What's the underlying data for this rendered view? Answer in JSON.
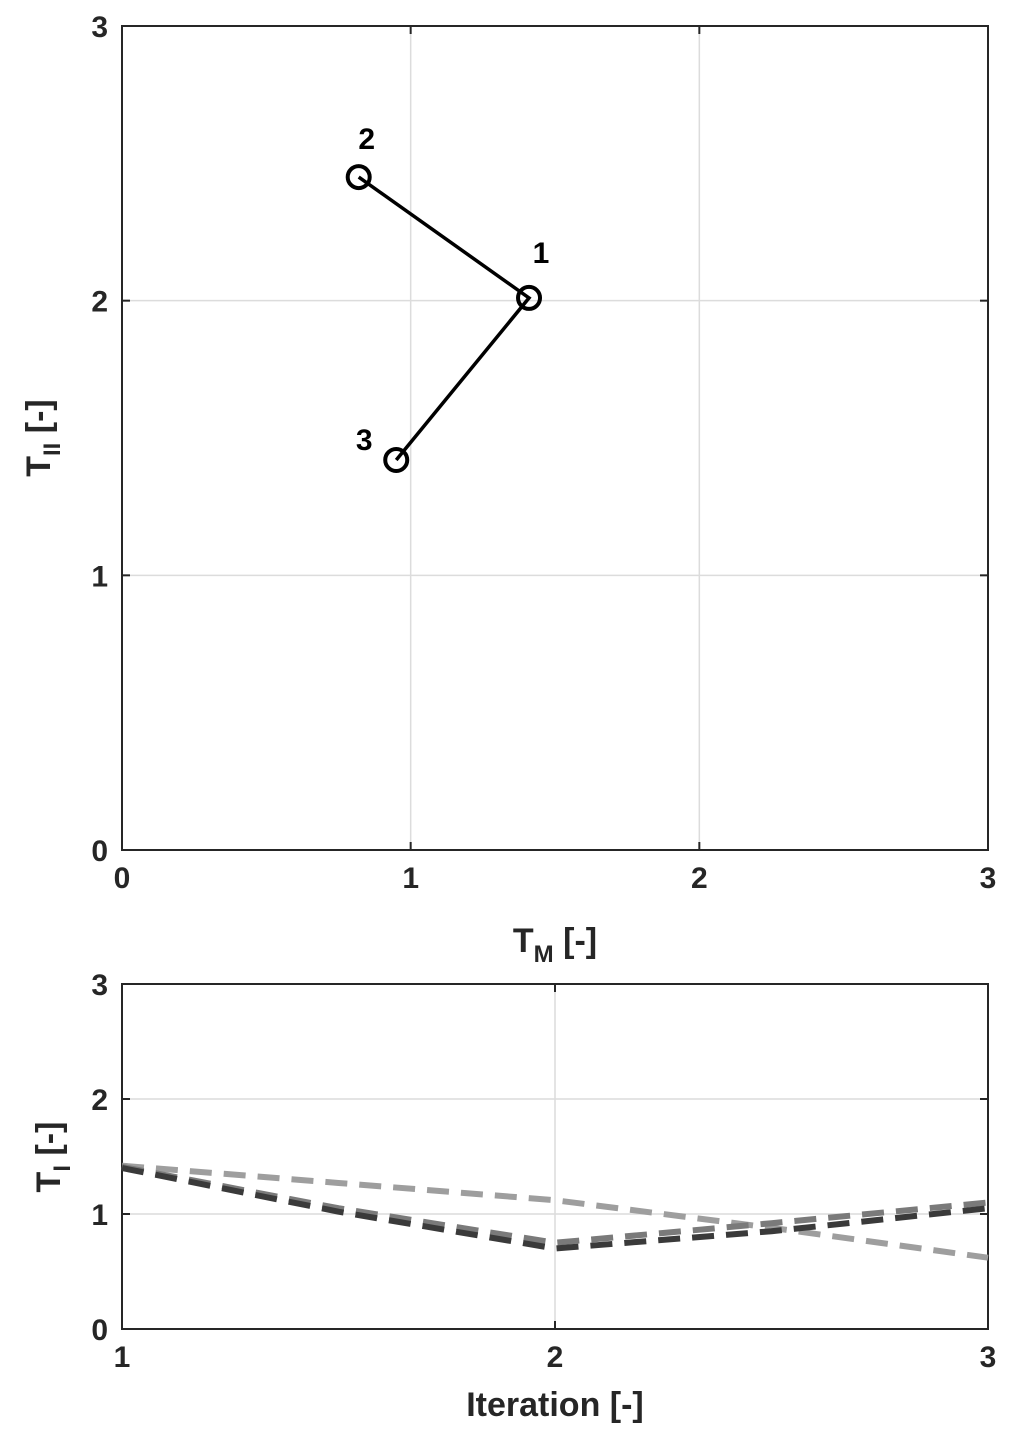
{
  "chart_data": [
    {
      "type": "line",
      "xlabel": {
        "base": "T",
        "sub": "M",
        "suffix": " [-]"
      },
      "ylabel": {
        "base": "T",
        "sub": "II",
        "suffix": " [-]"
      },
      "xlim": [
        0,
        3
      ],
      "ylim": [
        0,
        3
      ],
      "xticks": [
        "0",
        "1",
        "2",
        "3"
      ],
      "yticks": [
        "0",
        "1",
        "2",
        "3"
      ],
      "grid": true,
      "series": [
        {
          "points": [
            {
              "label": "2",
              "x": 0.82,
              "y": 2.45
            },
            {
              "label": "1",
              "x": 1.41,
              "y": 2.01
            },
            {
              "label": "3",
              "x": 0.95,
              "y": 1.42
            }
          ],
          "color": "#000000"
        }
      ]
    },
    {
      "type": "line",
      "xlabel": "Iteration [-]",
      "ylabel": {
        "base": "T",
        "sub": "I",
        "suffix": " [-]"
      },
      "xlim": [
        1,
        3
      ],
      "ylim": [
        0,
        3
      ],
      "xticks": [
        "1",
        "2",
        "3"
      ],
      "yticks": [
        "0",
        "1",
        "2",
        "3"
      ],
      "grid": true,
      "series": [
        {
          "x": [
            1,
            1.5,
            2,
            2.5,
            3
          ],
          "values": [
            1.42,
            1.27,
            1.12,
            0.88,
            0.62
          ],
          "color": "#9e9e9e"
        },
        {
          "x": [
            1,
            1.5,
            2,
            2.5,
            3
          ],
          "values": [
            1.41,
            1.05,
            0.75,
            0.92,
            1.1
          ],
          "color": "#7a7a7a"
        },
        {
          "x": [
            1,
            1.5,
            2,
            2.5,
            3
          ],
          "values": [
            1.4,
            1.02,
            0.7,
            0.85,
            1.05
          ],
          "color": "#3a3a3a"
        }
      ]
    }
  ]
}
